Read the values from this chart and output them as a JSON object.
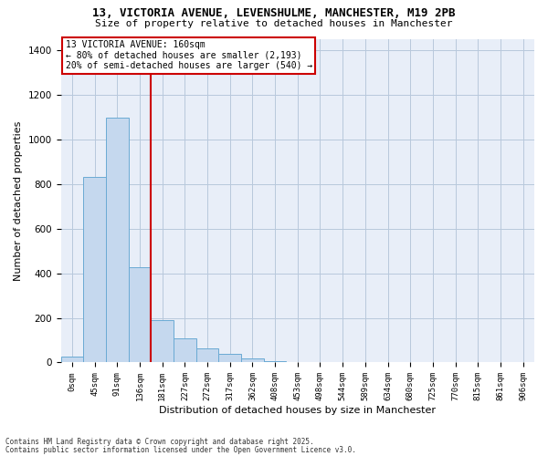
{
  "title_line1": "13, VICTORIA AVENUE, LEVENSHULME, MANCHESTER, M19 2PB",
  "title_line2": "Size of property relative to detached houses in Manchester",
  "xlabel": "Distribution of detached houses by size in Manchester",
  "ylabel": "Number of detached properties",
  "bar_color": "#c5d8ee",
  "bar_edge_color": "#6aaad4",
  "background_color": "#e8eef8",
  "grid_color": "#b8c8dc",
  "vline_color": "#cc0000",
  "vline_x": 3.5,
  "annotation_text": "13 VICTORIA AVENUE: 160sqm\n← 80% of detached houses are smaller (2,193)\n20% of semi-detached houses are larger (540) →",
  "annotation_box_color": "#cc0000",
  "categories": [
    "0sqm",
    "45sqm",
    "91sqm",
    "136sqm",
    "181sqm",
    "227sqm",
    "272sqm",
    "317sqm",
    "362sqm",
    "408sqm",
    "453sqm",
    "498sqm",
    "544sqm",
    "589sqm",
    "634sqm",
    "680sqm",
    "725sqm",
    "770sqm",
    "815sqm",
    "861sqm",
    "906sqm"
  ],
  "bar_heights": [
    25,
    830,
    1095,
    425,
    190,
    108,
    63,
    40,
    20,
    8,
    0,
    0,
    0,
    0,
    0,
    0,
    0,
    0,
    0,
    0,
    0
  ],
  "ylim": [
    0,
    1450
  ],
  "yticks": [
    0,
    200,
    400,
    600,
    800,
    1000,
    1200,
    1400
  ],
  "footnote_line1": "Contains HM Land Registry data © Crown copyright and database right 2025.",
  "footnote_line2": "Contains public sector information licensed under the Open Government Licence v3.0."
}
